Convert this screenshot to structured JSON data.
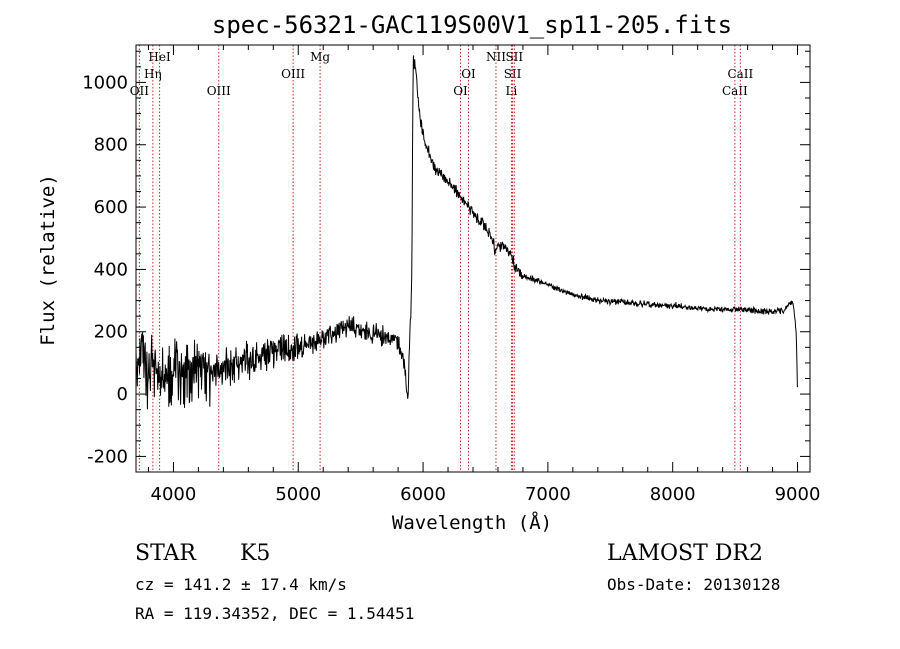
{
  "chart_data": {
    "type": "line",
    "title": "spec-56321-GAC119S00V1_sp11-205.fits",
    "xlabel": "Wavelength (Å)",
    "ylabel": "Flux (relative)",
    "xlim": [
      3700,
      9100
    ],
    "ylim": [
      -250,
      1120
    ],
    "xticks": [
      4000,
      5000,
      6000,
      7000,
      8000,
      9000
    ],
    "yticks": [
      -200,
      0,
      200,
      400,
      600,
      800,
      1000
    ],
    "xticks_minor_step": 200,
    "yticks_minor_step": 50,
    "grid": false,
    "series": [
      {
        "color": "#000000",
        "x": [
          3700,
          3750,
          3800,
          3850,
          3900,
          3950,
          4000,
          4100,
          4200,
          4300,
          4400,
          4500,
          4600,
          4700,
          4800,
          4900,
          5000,
          5100,
          5200,
          5300,
          5400,
          5500,
          5600,
          5700,
          5800,
          5850,
          5860,
          5870,
          5880,
          5890,
          5900,
          5910,
          5920,
          5940,
          5960,
          5980,
          6000,
          6050,
          6100,
          6150,
          6200,
          6250,
          6300,
          6350,
          6400,
          6450,
          6500,
          6550,
          6580,
          6600,
          6650,
          6700,
          6750,
          6800,
          6900,
          7000,
          7100,
          7200,
          7300,
          7400,
          7500,
          7600,
          7700,
          7800,
          7900,
          8000,
          8100,
          8200,
          8300,
          8400,
          8500,
          8600,
          8700,
          8800,
          8900,
          8950,
          8970,
          8990,
          9000
        ],
        "y": [
          80,
          120,
          60,
          90,
          70,
          60,
          80,
          65,
          70,
          75,
          80,
          95,
          110,
          120,
          130,
          140,
          150,
          160,
          175,
          195,
          215,
          205,
          195,
          185,
          165,
          100,
          60,
          20,
          10,
          150,
          220,
          380,
          1070,
          1050,
          950,
          870,
          830,
          770,
          720,
          700,
          680,
          660,
          630,
          610,
          580,
          560,
          530,
          500,
          460,
          470,
          480,
          450,
          400,
          380,
          365,
          350,
          335,
          320,
          310,
          300,
          295,
          295,
          290,
          290,
          285,
          285,
          280,
          275,
          275,
          270,
          270,
          270,
          265,
          265,
          270,
          300,
          280,
          200,
          10
        ]
      }
    ],
    "line_markers": [
      {
        "label": "OII",
        "x": 3727,
        "label_row": "bottom"
      },
      {
        "label": "Hη",
        "x": 3835,
        "label_row": "middle"
      },
      {
        "label": "HeI",
        "x": 3889,
        "label_row": "top"
      },
      {
        "label": "OIII",
        "x": 4363,
        "label_row": "bottom"
      },
      {
        "label": "OIII",
        "x": 4959,
        "label_row": "middle"
      },
      {
        "label": "Mg",
        "x": 5175,
        "label_row": "top"
      },
      {
        "label": "OI",
        "x": 6300,
        "label_row": "bottom"
      },
      {
        "label": "OI",
        "x": 6364,
        "label_row": "middle"
      },
      {
        "label": "NII",
        "x": 6584,
        "label_row": "top"
      },
      {
        "label": "Li",
        "x": 6708,
        "label_row": "bottom"
      },
      {
        "label": "SII",
        "x": 6717,
        "label_row": "middle"
      },
      {
        "label": "SII",
        "x": 6731,
        "label_row": "top"
      },
      {
        "label": "CaII",
        "x": 8498,
        "label_row": "bottom"
      },
      {
        "label": "CaII",
        "x": 8542,
        "label_row": "middle"
      }
    ]
  },
  "info": {
    "class_label": "STAR",
    "subclass_label": "K5",
    "survey_label": "LAMOST DR2",
    "cz_line": "cz = 141.2 ± 17.4 km/s",
    "obsdate_line": "Obs-Date: 20130128",
    "radec_line": "RA = 119.34352, DEC =   1.54451"
  },
  "colors": {
    "spectrum": "#000000",
    "marker_line": "#cc2222",
    "frame": "#000000"
  }
}
